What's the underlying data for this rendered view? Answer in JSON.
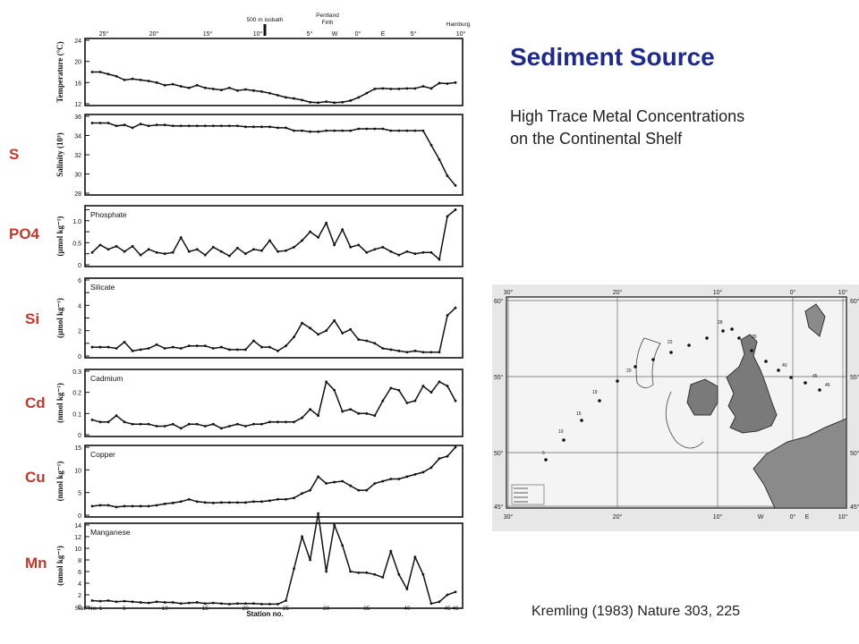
{
  "slide": {
    "title": "Sediment Source",
    "subtitle_lines": [
      "High Trace Metal Concentrations",
      "on the Continental Shelf"
    ],
    "citation": "Kremling (1983) Nature 303, 225"
  },
  "element_labels": [
    "S",
    "PO4",
    "Si",
    "Cd",
    "Cu",
    "Mn"
  ],
  "figure": {
    "top_axis_labels": [
      "25°",
      "20°",
      "15°",
      "10°",
      "5°",
      "W",
      "0°",
      "E",
      "5°",
      "10°"
    ],
    "annotations": [
      "500 m isobath",
      "Pentland Firth",
      "Hamburg"
    ],
    "bottom_tick_labels": [
      "Stat. No. 1",
      "5",
      "10",
      "15",
      "20",
      "25",
      "30",
      "35",
      "40",
      "45",
      "46"
    ],
    "xlabel": "Station no."
  },
  "chart_data": [
    {
      "type": "line",
      "ylabel": "Temperature (°C)",
      "yticks": [
        12,
        16,
        20,
        24
      ],
      "ylim": [
        12,
        24
      ],
      "xlim": [
        1,
        46
      ],
      "series": [
        {
          "values": [
            18.0,
            18.0,
            17.6,
            17.2,
            16.5,
            16.7,
            16.5,
            16.3,
            16.0,
            15.5,
            15.7,
            15.3,
            15.0,
            15.5,
            15.0,
            14.8,
            14.6,
            15.0,
            14.5,
            14.7,
            14.5,
            14.3,
            14.0,
            13.6,
            13.2,
            13.0,
            12.7,
            12.3,
            12.2,
            12.4,
            12.2,
            12.3,
            12.6,
            13.2,
            14.0,
            14.8,
            14.9,
            14.8,
            14.8,
            14.9,
            14.9,
            15.3,
            14.9,
            15.9,
            15.8,
            16.0
          ]
        }
      ]
    },
    {
      "type": "line",
      "ylabel": "Salinity (10³)",
      "yticks": [
        28,
        30,
        32,
        34,
        36
      ],
      "ylim": [
        28,
        36
      ],
      "xlim": [
        1,
        46
      ],
      "series": [
        {
          "values": [
            35.3,
            35.3,
            35.3,
            35.0,
            35.1,
            34.8,
            35.2,
            35.0,
            35.1,
            35.1,
            35.0,
            35.0,
            35.0,
            35.0,
            35.0,
            35.0,
            35.0,
            35.0,
            35.0,
            34.9,
            34.9,
            34.9,
            34.9,
            34.8,
            34.8,
            34.5,
            34.5,
            34.4,
            34.4,
            34.5,
            34.5,
            34.5,
            34.5,
            34.7,
            34.7,
            34.7,
            34.7,
            34.5,
            34.5,
            34.5,
            34.5,
            34.5,
            33.0,
            31.5,
            29.8,
            28.8
          ]
        }
      ]
    },
    {
      "type": "line",
      "ylabel": "(µmol kg⁻¹)",
      "series_label": "Phosphate",
      "yticks": [
        0,
        0.25,
        0.5,
        0.75,
        1.0,
        1.25
      ],
      "yticklabels": [
        "0",
        "",
        "0.5",
        "",
        "1.0",
        ""
      ],
      "ylim": [
        0,
        1.3
      ],
      "xlim": [
        1,
        46
      ],
      "series": [
        {
          "values": [
            0.28,
            0.45,
            0.35,
            0.42,
            0.3,
            0.42,
            0.22,
            0.35,
            0.28,
            0.25,
            0.28,
            0.62,
            0.3,
            0.35,
            0.22,
            0.4,
            0.3,
            0.2,
            0.38,
            0.25,
            0.35,
            0.32,
            0.55,
            0.3,
            0.32,
            0.4,
            0.55,
            0.75,
            0.62,
            0.95,
            0.45,
            0.8,
            0.4,
            0.45,
            0.28,
            0.35,
            0.4,
            0.3,
            0.22,
            0.3,
            0.25,
            0.28,
            0.28,
            0.12,
            1.1,
            1.25
          ]
        }
      ]
    },
    {
      "type": "line",
      "ylabel": "(µmol kg⁻¹)",
      "series_label": "Silicate",
      "yticks": [
        0,
        1,
        2,
        3,
        4,
        5,
        6
      ],
      "yticklabels": [
        "0",
        "",
        "2",
        "",
        "4",
        "",
        "6"
      ],
      "ylim": [
        0,
        6
      ],
      "xlim": [
        1,
        46
      ],
      "series": [
        {
          "values": [
            0.7,
            0.7,
            0.7,
            0.6,
            1.1,
            0.4,
            0.5,
            0.6,
            0.9,
            0.6,
            0.7,
            0.6,
            0.8,
            0.8,
            0.8,
            0.6,
            0.7,
            0.5,
            0.5,
            0.5,
            1.2,
            0.7,
            0.7,
            0.4,
            0.8,
            1.5,
            2.6,
            2.2,
            1.7,
            2.0,
            2.8,
            1.8,
            2.1,
            1.3,
            1.2,
            1.0,
            0.6,
            0.5,
            0.4,
            0.3,
            0.4,
            0.3,
            0.3,
            0.3,
            3.2,
            3.8
          ]
        }
      ]
    },
    {
      "type": "line",
      "ylabel": "(nmol kg⁻¹)",
      "series_label": "Cadmium",
      "yticks": [
        0,
        0.1,
        0.2,
        0.3
      ],
      "ylim": [
        0,
        0.3
      ],
      "xlim": [
        1,
        46
      ],
      "series": [
        {
          "values": [
            0.07,
            0.06,
            0.06,
            0.09,
            0.06,
            0.05,
            0.05,
            0.05,
            0.04,
            0.04,
            0.05,
            0.03,
            0.05,
            0.05,
            0.04,
            0.05,
            0.03,
            0.04,
            0.05,
            0.04,
            0.05,
            0.05,
            0.06,
            0.06,
            0.06,
            0.06,
            0.08,
            0.12,
            0.09,
            0.25,
            0.21,
            0.11,
            0.12,
            0.1,
            0.1,
            0.09,
            0.16,
            0.22,
            0.21,
            0.15,
            0.16,
            0.23,
            0.2,
            0.25,
            0.23,
            0.16
          ]
        }
      ]
    },
    {
      "type": "line",
      "ylabel": "(nmol kg⁻¹)",
      "series_label": "Copper",
      "yticks": [
        0,
        5,
        10,
        15
      ],
      "ylim": [
        0,
        15
      ],
      "xlim": [
        1,
        46
      ],
      "series": [
        {
          "values": [
            2.0,
            2.2,
            2.2,
            1.8,
            2.0,
            2.0,
            2.0,
            2.0,
            2.2,
            2.5,
            2.7,
            3.0,
            3.5,
            3.0,
            2.8,
            2.7,
            2.8,
            2.8,
            2.8,
            2.8,
            3.0,
            3.0,
            3.2,
            3.5,
            3.5,
            3.8,
            4.8,
            5.5,
            8.5,
            7.0,
            7.3,
            7.5,
            6.5,
            5.5,
            5.5,
            7.0,
            7.5,
            8.0,
            8.0,
            8.5,
            9.0,
            9.5,
            10.5,
            12.5,
            13.0,
            15.0
          ]
        }
      ]
    },
    {
      "type": "line",
      "ylabel": "(nmol kg⁻¹)",
      "series_label": "Manganese",
      "yticks": [
        0,
        2,
        4,
        6,
        8,
        10,
        12,
        14
      ],
      "ylim": [
        0,
        14
      ],
      "xlim": [
        1,
        46
      ],
      "series": [
        {
          "values": [
            1.0,
            0.9,
            1.0,
            0.8,
            0.9,
            0.8,
            0.7,
            0.6,
            0.8,
            0.7,
            0.7,
            0.5,
            0.6,
            0.7,
            0.5,
            0.6,
            0.5,
            0.4,
            0.5,
            0.5,
            0.5,
            0.4,
            0.4,
            0.4,
            1.0,
            6.5,
            12.0,
            8.0,
            16.0,
            6.0,
            14.0,
            10.5,
            6.0,
            5.8,
            5.8,
            5.5,
            5.0,
            9.5,
            5.5,
            3.0,
            8.5,
            5.5,
            0.5,
            0.8,
            2.0,
            2.5
          ]
        }
      ]
    }
  ],
  "map": {
    "lon_labels": [
      "30°",
      "20°",
      "10°",
      "0°",
      "10°"
    ],
    "bottom_lon_labels": [
      "30°",
      "20°",
      "10°",
      "W",
      "0°",
      "E",
      "10°"
    ],
    "lat_labels": [
      "60°",
      "55°",
      "50°",
      "45°"
    ],
    "station_labels": [
      "19",
      "15",
      "20",
      "22",
      "28",
      "35",
      "40",
      "45",
      "46",
      "10",
      "5"
    ]
  }
}
